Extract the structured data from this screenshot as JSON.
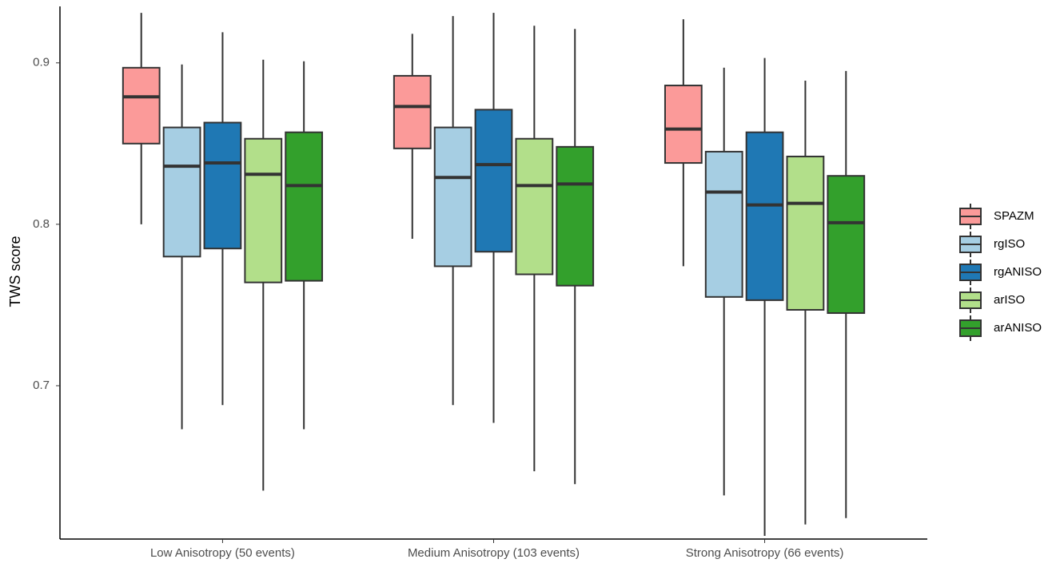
{
  "chart_data": {
    "type": "box",
    "y_label": "TWS score",
    "categories": [
      "Low Anisotropy (50 events)",
      "Medium Anisotropy (103 events)",
      "Strong Anisotropy (66 events)"
    ],
    "series": [
      {
        "name": "SPAZM",
        "color": "#fb9a99",
        "whisker_low": [
          0.8,
          0.791,
          0.774
        ],
        "q1": [
          0.85,
          0.847,
          0.838
        ],
        "median": [
          0.879,
          0.873,
          0.859
        ],
        "q3": [
          0.897,
          0.892,
          0.886
        ],
        "whisker_high": [
          0.931,
          0.918,
          0.927
        ]
      },
      {
        "name": "rgISO",
        "color": "#a6cee3",
        "whisker_low": [
          0.673,
          0.688,
          0.632
        ],
        "q1": [
          0.78,
          0.774,
          0.755
        ],
        "median": [
          0.836,
          0.829,
          0.82
        ],
        "q3": [
          0.86,
          0.86,
          0.845
        ],
        "whisker_high": [
          0.899,
          0.929,
          0.897
        ]
      },
      {
        "name": "rgANISO",
        "color": "#1f78b4",
        "whisker_low": [
          0.688,
          0.677,
          0.607
        ],
        "q1": [
          0.785,
          0.783,
          0.753
        ],
        "median": [
          0.838,
          0.837,
          0.812
        ],
        "q3": [
          0.863,
          0.871,
          0.857
        ],
        "whisker_high": [
          0.919,
          0.931,
          0.903
        ]
      },
      {
        "name": "arISO",
        "color": "#b2df8a",
        "whisker_low": [
          0.635,
          0.647,
          0.614
        ],
        "q1": [
          0.764,
          0.769,
          0.747
        ],
        "median": [
          0.831,
          0.824,
          0.813
        ],
        "q3": [
          0.853,
          0.853,
          0.842
        ],
        "whisker_high": [
          0.902,
          0.923,
          0.889
        ]
      },
      {
        "name": "arANISO",
        "color": "#33a02c",
        "whisker_low": [
          0.673,
          0.639,
          0.618
        ],
        "q1": [
          0.765,
          0.762,
          0.745
        ],
        "median": [
          0.824,
          0.825,
          0.801
        ],
        "q3": [
          0.857,
          0.848,
          0.83
        ],
        "whisker_high": [
          0.901,
          0.921,
          0.895
        ]
      }
    ],
    "ylim": [
      0.605,
      0.935
    ],
    "yticks": [
      0.7,
      0.8,
      0.9
    ],
    "grid": false,
    "legend": "right"
  }
}
